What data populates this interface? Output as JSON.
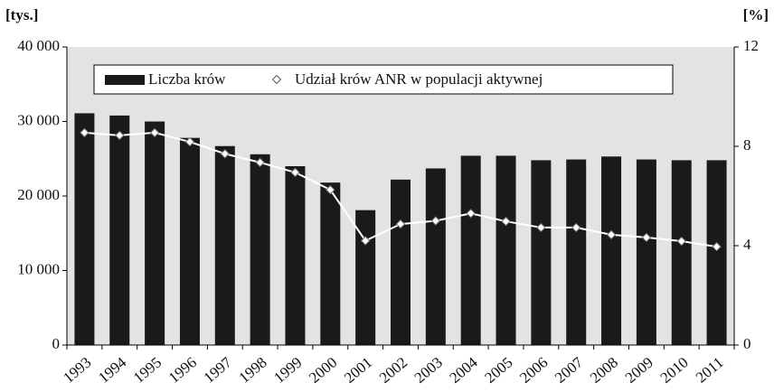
{
  "chart_data": {
    "type": "bar",
    "y_label": "[tys.]",
    "y2_label": "[%]",
    "categories": [
      "1993",
      "1994",
      "1995",
      "1996",
      "1997",
      "1998",
      "1999",
      "2000",
      "2001",
      "2002",
      "2003",
      "2004",
      "2005",
      "2006",
      "2007",
      "2008",
      "2009",
      "2010",
      "2011"
    ],
    "series": [
      {
        "name": "Liczba krów",
        "type": "bar",
        "color": "#1a1a1a",
        "axis": "y",
        "values": [
          31100,
          30800,
          30000,
          27800,
          26700,
          25600,
          24000,
          21800,
          18100,
          22200,
          23700,
          25400,
          25400,
          24800,
          24900,
          25300,
          24900,
          24800,
          24800
        ]
      },
      {
        "name": "Udział krów ANR w populacji aktywnej",
        "type": "line",
        "color": "#ffffff",
        "axis": "y2",
        "values": [
          8.55,
          8.44,
          8.55,
          8.18,
          7.7,
          7.35,
          6.95,
          6.25,
          4.2,
          4.87,
          5.0,
          5.3,
          4.98,
          4.73,
          4.73,
          4.44,
          4.33,
          4.18,
          3.96
        ]
      }
    ],
    "ylim": [
      0,
      40000
    ],
    "yticks": [
      0,
      {
        "value": 10000,
        "label": "10 000"
      },
      {
        "value": 20000,
        "label": "20 000"
      },
      {
        "value": 30000,
        "label": "30 000"
      },
      {
        "value": 40000,
        "label": "40 000"
      }
    ],
    "y2lim": [
      0,
      12
    ],
    "y2ticks": [
      0,
      4,
      8,
      12
    ],
    "legend": "top",
    "background": "#e3e3e3"
  }
}
